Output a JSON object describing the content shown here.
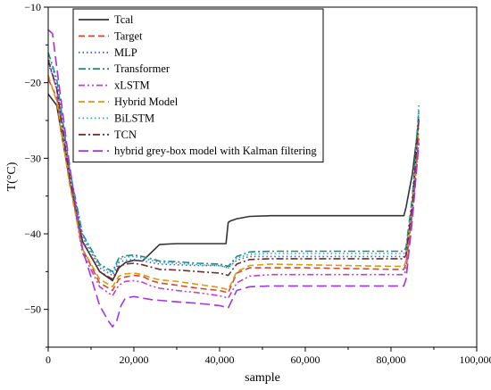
{
  "chart_data": {
    "type": "line",
    "xlabel": "sample",
    "ylabel": "T(°C)",
    "xlim": [
      0,
      100000
    ],
    "ylim": [
      -55,
      -10
    ],
    "x_ticks": [
      0,
      20000,
      40000,
      60000,
      80000,
      100000
    ],
    "x_tick_labels": [
      "0",
      "20,000",
      "40,000",
      "60,000",
      "80,000",
      "100,000"
    ],
    "y_ticks": [
      -50,
      -40,
      -30,
      -20,
      -10
    ],
    "y_tick_labels": [
      "−50",
      "−40",
      "−30",
      "−20",
      "−10"
    ],
    "grid": false,
    "legend_position": "top-left",
    "series": [
      {
        "name": "Tcal",
        "color": "#333333",
        "dash": "solid",
        "x": [
          0,
          2000,
          5000,
          8000,
          12000,
          15000,
          16500,
          18000,
          20000,
          22000,
          24000,
          26000,
          30000,
          35000,
          41500,
          42000,
          42500,
          44000,
          47000,
          52000,
          60000,
          70000,
          80000,
          83000,
          83500,
          85000,
          86500
        ],
        "y": [
          -21.5,
          -23,
          -33,
          -41,
          -45,
          -46.2,
          -44.5,
          -43.8,
          -43.5,
          -43.6,
          -42.5,
          -41.4,
          -41.3,
          -41.3,
          -41.3,
          -38.5,
          -38.3,
          -38,
          -37.7,
          -37.6,
          -37.6,
          -37.6,
          -37.6,
          -37.6,
          -36.5,
          -32,
          -25
        ]
      },
      {
        "name": "Target",
        "color": "#d9452f",
        "dash": "dashed",
        "x": [
          0,
          2000,
          5000,
          8000,
          12000,
          15000,
          16500,
          18000,
          20000,
          22000,
          24000,
          26000,
          30000,
          35000,
          40000,
          42000,
          44000,
          47000,
          52000,
          60000,
          70000,
          80000,
          83000,
          83500,
          85000,
          86500
        ],
        "y": [
          -19.5,
          -22,
          -33,
          -42,
          -46.5,
          -47.5,
          -46,
          -45.7,
          -45.5,
          -45.6,
          -46.2,
          -46.5,
          -46.8,
          -47.2,
          -47.5,
          -47.8,
          -45.2,
          -44.5,
          -44.5,
          -44.5,
          -44.6,
          -44.7,
          -44.7,
          -44,
          -37,
          -27
        ]
      },
      {
        "name": "MLP",
        "color": "#3b5fd0",
        "dash": "dotted",
        "x": [
          0,
          2000,
          5000,
          8000,
          12000,
          15000,
          16500,
          18000,
          20000,
          22000,
          24000,
          26000,
          30000,
          35000,
          40000,
          42000,
          44000,
          47000,
          52000,
          60000,
          70000,
          80000,
          83000,
          83500,
          85000,
          86500
        ],
        "y": [
          -17.5,
          -20.5,
          -32,
          -40.5,
          -44.5,
          -45.5,
          -43.8,
          -43.5,
          -43.4,
          -43.6,
          -43.8,
          -44,
          -44.1,
          -44.2,
          -44.2,
          -44.5,
          -43.5,
          -43,
          -43,
          -43,
          -43,
          -43,
          -43,
          -42.5,
          -36,
          -24
        ]
      },
      {
        "name": "Transformer",
        "color": "#1a8f7a",
        "dash": "dashdot",
        "x": [
          0,
          2000,
          5000,
          8000,
          12000,
          15000,
          16500,
          18000,
          20000,
          22000,
          24000,
          26000,
          30000,
          35000,
          40000,
          42000,
          44000,
          47000,
          52000,
          60000,
          70000,
          80000,
          83000,
          83500,
          85000,
          86500
        ],
        "y": [
          -16,
          -19.5,
          -31.5,
          -40,
          -44,
          -45,
          -43.2,
          -42.9,
          -42.8,
          -43,
          -43.3,
          -43.6,
          -43.7,
          -43.9,
          -44,
          -44.3,
          -43,
          -42.4,
          -42.3,
          -42.3,
          -42.3,
          -42.3,
          -42.3,
          -41.8,
          -35,
          -23.5
        ]
      },
      {
        "name": "xLSTM",
        "color": "#c03ed0",
        "dash": "dashdotdot",
        "x": [
          0,
          2000,
          5000,
          8000,
          12000,
          15000,
          16500,
          18000,
          20000,
          22000,
          24000,
          26000,
          30000,
          35000,
          40000,
          42000,
          44000,
          47000,
          52000,
          60000,
          70000,
          80000,
          83000,
          83500,
          85000,
          86500
        ],
        "y": [
          -17,
          -21,
          -33,
          -42.5,
          -47,
          -48.2,
          -46.8,
          -46.3,
          -46.2,
          -46.4,
          -46.9,
          -47.2,
          -47.5,
          -47.8,
          -48.2,
          -48.5,
          -46.5,
          -45.6,
          -45.4,
          -45.4,
          -45.4,
          -45.4,
          -45.4,
          -44.8,
          -37,
          -27.5
        ]
      },
      {
        "name": "Hybrid Model",
        "color": "#d99a0b",
        "dash": "dashed",
        "x": [
          0,
          2000,
          5000,
          8000,
          12000,
          15000,
          16500,
          18000,
          20000,
          22000,
          24000,
          26000,
          30000,
          35000,
          40000,
          42000,
          44000,
          47000,
          52000,
          60000,
          70000,
          80000,
          83000,
          83500,
          85000,
          86500
        ],
        "y": [
          -19,
          -22.5,
          -33.5,
          -42,
          -46,
          -47,
          -45.6,
          -45.3,
          -45.2,
          -45.4,
          -45.8,
          -46.1,
          -46.3,
          -46.7,
          -47.1,
          -47.4,
          -45,
          -44.2,
          -44,
          -44.1,
          -44.2,
          -44.3,
          -44.3,
          -43.6,
          -36,
          -26
        ]
      },
      {
        "name": "BiLSTM",
        "color": "#2c9fd3",
        "dash": "dotted",
        "x": [
          0,
          2000,
          5000,
          8000,
          12000,
          15000,
          16500,
          18000,
          20000,
          22000,
          24000,
          26000,
          30000,
          35000,
          40000,
          42000,
          44000,
          47000,
          52000,
          60000,
          70000,
          80000,
          83000,
          83500,
          85000,
          86500
        ],
        "y": [
          -16.5,
          -20,
          -31.8,
          -40.2,
          -44.2,
          -45.2,
          -43.4,
          -43.1,
          -43,
          -43.2,
          -43.5,
          -43.8,
          -43.9,
          -44.1,
          -44.2,
          -44.5,
          -43.2,
          -42.7,
          -42.6,
          -42.6,
          -42.6,
          -42.6,
          -42.6,
          -42.1,
          -35.5,
          -23
        ]
      },
      {
        "name": "TCN",
        "color": "#6b2f2f",
        "dash": "dashdot",
        "x": [
          0,
          2000,
          5000,
          8000,
          12000,
          15000,
          16500,
          18000,
          20000,
          22000,
          24000,
          26000,
          30000,
          35000,
          40000,
          42000,
          44000,
          47000,
          52000,
          60000,
          70000,
          80000,
          83000,
          83500,
          85000,
          86500
        ],
        "y": [
          -17,
          -20.8,
          -32.5,
          -41,
          -45,
          -46,
          -44.3,
          -44,
          -43.9,
          -44.1,
          -44.4,
          -44.7,
          -44.8,
          -45,
          -45.2,
          -45.5,
          -44,
          -43.4,
          -43.3,
          -43.3,
          -43.3,
          -43.3,
          -43.3,
          -42.8,
          -36,
          -24.5
        ]
      },
      {
        "name": "hybrid grey-box model with Kalman filtering",
        "color": "#a335e0",
        "dash": "longdash",
        "x": [
          0,
          1000,
          2000,
          5000,
          8000,
          12000,
          14000,
          15000,
          16000,
          17000,
          18000,
          20000,
          22000,
          24000,
          26000,
          30000,
          35000,
          40000,
          42000,
          44000,
          47000,
          52000,
          60000,
          70000,
          80000,
          83000,
          83500,
          85000,
          86500
        ],
        "y": [
          -13,
          -13.5,
          -18,
          -31,
          -42,
          -49.5,
          -51.5,
          -52.3,
          -51.5,
          -49.5,
          -48.5,
          -48.3,
          -48.5,
          -48.7,
          -48.8,
          -49,
          -49.2,
          -49.5,
          -49.8,
          -47.5,
          -47,
          -46.9,
          -46.9,
          -46.9,
          -46.9,
          -46.9,
          -46,
          -38,
          -28
        ]
      }
    ]
  }
}
